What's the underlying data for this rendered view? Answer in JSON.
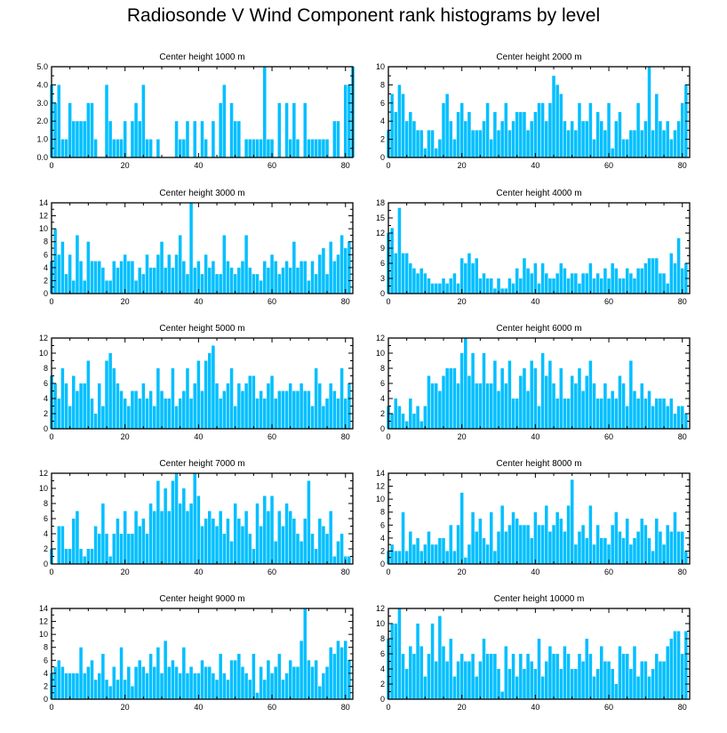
{
  "title": "Radiosonde V Wind Component rank histograms by level",
  "colors": {
    "bar": "#00bfff",
    "axis": "#000000",
    "background": "#ffffff"
  },
  "chart_data": [
    {
      "type": "bar",
      "title": "Center height 1000 m",
      "xlim": [
        0,
        82
      ],
      "ylim": [
        0,
        5
      ],
      "xticks": [
        0,
        20,
        40,
        60,
        80
      ],
      "yticks": [
        0,
        1,
        2,
        3,
        4,
        5
      ],
      "ytick_labels": [
        "0.0",
        "1.0",
        "2.0",
        "3.0",
        "4.0",
        "5.0"
      ],
      "values": [
        4,
        3,
        4,
        1,
        1,
        3,
        2,
        2,
        2,
        2,
        3,
        3,
        1,
        0,
        0,
        4,
        2,
        1,
        1,
        1,
        2,
        0,
        2,
        3,
        2,
        4,
        1,
        1,
        0,
        1,
        0,
        0,
        0,
        0,
        2,
        1,
        1,
        2,
        0,
        2,
        0,
        2,
        1,
        0,
        2,
        0,
        3,
        4,
        0,
        3,
        2,
        2,
        0,
        1,
        1,
        1,
        1,
        1,
        5,
        1,
        1,
        0,
        3,
        0,
        3,
        1,
        3,
        1,
        0,
        3,
        1,
        1,
        1,
        1,
        1,
        1,
        0,
        2,
        2,
        0,
        4,
        4,
        5
      ]
    },
    {
      "type": "bar",
      "title": "Center height 2000 m",
      "xlim": [
        0,
        82
      ],
      "ylim": [
        0,
        10
      ],
      "xticks": [
        0,
        20,
        40,
        60,
        80
      ],
      "yticks": [
        0,
        2,
        4,
        6,
        8,
        10
      ],
      "ytick_labels": [
        "0",
        "2",
        "4",
        "6",
        "8",
        "10"
      ],
      "values": [
        3,
        7,
        5,
        8,
        7,
        4,
        5,
        4,
        3,
        3,
        1,
        3,
        3,
        1,
        2,
        6,
        7,
        4,
        2,
        5,
        6,
        4,
        5,
        3,
        3,
        3,
        4,
        6,
        2,
        5,
        3,
        4,
        6,
        3,
        4,
        5,
        5,
        5,
        3,
        4,
        5,
        6,
        6,
        4,
        6,
        9,
        8,
        7,
        4,
        3,
        4,
        3,
        6,
        4,
        4,
        6,
        2,
        5,
        4,
        3,
        6,
        1,
        4,
        5,
        2,
        2,
        3,
        3,
        6,
        3,
        4,
        10,
        3,
        7,
        4,
        3,
        4,
        2,
        3,
        4,
        6,
        8
      ]
    },
    {
      "type": "bar",
      "title": "Center height 3000 m",
      "xlim": [
        0,
        82
      ],
      "ylim": [
        0,
        14
      ],
      "xticks": [
        0,
        20,
        40,
        60,
        80
      ],
      "yticks": [
        0,
        2,
        4,
        6,
        8,
        10,
        12,
        14
      ],
      "ytick_labels": [
        "0",
        "2",
        "4",
        "6",
        "8",
        "10",
        "12",
        "14"
      ],
      "values": [
        5,
        10,
        6,
        8,
        3,
        6,
        2,
        9,
        5,
        2,
        8,
        5,
        5,
        5,
        4,
        2,
        2,
        5,
        4,
        5,
        6,
        5,
        5,
        2,
        4,
        3,
        6,
        4,
        4,
        6,
        8,
        4,
        6,
        4,
        6,
        9,
        5,
        3,
        14,
        4,
        5,
        3,
        6,
        4,
        5,
        3,
        3,
        9,
        5,
        4,
        3,
        4,
        5,
        9,
        4,
        3,
        3,
        2,
        5,
        4,
        6,
        5,
        3,
        4,
        5,
        4,
        8,
        4,
        5,
        5,
        2,
        5,
        3,
        6,
        7,
        3,
        8,
        5,
        6,
        9,
        7,
        8
      ]
    },
    {
      "type": "bar",
      "title": "Center height 4000 m",
      "xlim": [
        0,
        82
      ],
      "ylim": [
        0,
        18
      ],
      "xticks": [
        0,
        20,
        40,
        60,
        80
      ],
      "yticks": [
        0,
        3,
        6,
        9,
        12,
        15,
        18
      ],
      "ytick_labels": [
        "0",
        "3",
        "6",
        "9",
        "12",
        "15",
        "18"
      ],
      "values": [
        12,
        13,
        8,
        17,
        8,
        8,
        6,
        5,
        4,
        5,
        4,
        3,
        2,
        2,
        2,
        3,
        2,
        3,
        4,
        2,
        7,
        6,
        8,
        6,
        7,
        3,
        4,
        3,
        3,
        1,
        3,
        1,
        1,
        3,
        2,
        5,
        3,
        7,
        5,
        4,
        6,
        2,
        6,
        4,
        3,
        3,
        4,
        6,
        5,
        3,
        4,
        4,
        2,
        4,
        4,
        6,
        3,
        4,
        3,
        5,
        3,
        6,
        5,
        3,
        3,
        5,
        4,
        3,
        5,
        5,
        6,
        7,
        7,
        7,
        4,
        4,
        2,
        8,
        6,
        11,
        5,
        6
      ]
    },
    {
      "type": "bar",
      "title": "Center height 5000 m",
      "xlim": [
        0,
        82
      ],
      "ylim": [
        0,
        12
      ],
      "xticks": [
        0,
        20,
        40,
        60,
        80
      ],
      "yticks": [
        0,
        2,
        4,
        6,
        8,
        10,
        12
      ],
      "ytick_labels": [
        "0",
        "2",
        "4",
        "6",
        "8",
        "10",
        "12"
      ],
      "values": [
        7,
        6,
        4,
        8,
        6,
        3,
        7,
        5,
        6,
        6,
        9,
        4,
        2,
        6,
        3,
        9,
        10,
        8,
        6,
        5,
        4,
        3,
        5,
        5,
        4,
        6,
        4,
        5,
        3,
        8,
        5,
        4,
        4,
        8,
        3,
        4,
        5,
        8,
        4,
        6,
        9,
        5,
        9,
        10,
        11,
        6,
        4,
        5,
        6,
        8,
        3,
        6,
        5,
        6,
        7,
        7,
        4,
        5,
        4,
        6,
        7,
        4,
        5,
        5,
        5,
        6,
        5,
        5,
        6,
        5,
        5,
        3,
        8,
        6,
        3,
        4,
        6,
        5,
        4,
        8,
        4,
        6
      ]
    },
    {
      "type": "bar",
      "title": "Center height 6000 m",
      "xlim": [
        0,
        82
      ],
      "ylim": [
        0,
        12
      ],
      "xticks": [
        0,
        20,
        40,
        60,
        80
      ],
      "yticks": [
        0,
        2,
        4,
        6,
        8,
        10,
        12
      ],
      "ytick_labels": [
        "0",
        "2",
        "4",
        "6",
        "8",
        "10",
        "12"
      ],
      "values": [
        3,
        2,
        4,
        3,
        2,
        1,
        4,
        2,
        3,
        1,
        3,
        7,
        6,
        6,
        5,
        7,
        8,
        8,
        8,
        6,
        10,
        12,
        7,
        10,
        6,
        6,
        10,
        6,
        6,
        9,
        5,
        8,
        6,
        9,
        4,
        4,
        7,
        8,
        5,
        9,
        8,
        3,
        10,
        7,
        9,
        6,
        4,
        8,
        4,
        4,
        7,
        6,
        8,
        5,
        7,
        9,
        6,
        4,
        4,
        6,
        4,
        5,
        4,
        7,
        6,
        3,
        9,
        5,
        4,
        6,
        4,
        5,
        3,
        4,
        4,
        4,
        3,
        4,
        2,
        3,
        3,
        2
      ]
    },
    {
      "type": "bar",
      "title": "Center height 7000 m",
      "xlim": [
        0,
        82
      ],
      "ylim": [
        0,
        12
      ],
      "xticks": [
        0,
        20,
        40,
        60,
        80
      ],
      "yticks": [
        0,
        2,
        4,
        6,
        8,
        10,
        12
      ],
      "ytick_labels": [
        "0",
        "2",
        "4",
        "6",
        "8",
        "10",
        "12"
      ],
      "values": [
        2,
        0,
        5,
        5,
        2,
        2,
        6,
        7,
        2,
        1,
        2,
        2,
        5,
        4,
        8,
        4,
        1,
        4,
        6,
        4,
        7,
        4,
        4,
        7,
        5,
        6,
        4,
        8,
        7,
        11,
        7,
        10,
        7,
        11,
        12,
        8,
        10,
        7,
        8,
        12,
        9,
        5,
        6,
        7,
        6,
        5,
        7,
        4,
        6,
        3,
        8,
        6,
        5,
        7,
        4,
        2,
        8,
        5,
        9,
        7,
        9,
        3,
        7,
        5,
        8,
        7,
        6,
        4,
        3,
        6,
        11,
        4,
        2,
        6,
        5,
        4,
        7,
        1,
        3,
        4,
        1,
        1
      ]
    },
    {
      "type": "bar",
      "title": "Center height 8000 m",
      "xlim": [
        0,
        82
      ],
      "ylim": [
        0,
        14
      ],
      "xticks": [
        0,
        20,
        40,
        60,
        80
      ],
      "yticks": [
        0,
        2,
        4,
        6,
        8,
        10,
        12,
        14
      ],
      "ytick_labels": [
        "0",
        "2",
        "4",
        "6",
        "8",
        "10",
        "12",
        "14"
      ],
      "values": [
        2,
        3,
        2,
        2,
        8,
        2,
        5,
        3,
        4,
        2,
        3,
        5,
        3,
        3,
        4,
        4,
        2,
        6,
        2,
        6,
        11,
        1,
        3,
        8,
        5,
        7,
        4,
        3,
        8,
        2,
        5,
        9,
        5,
        6,
        8,
        7,
        6,
        6,
        6,
        4,
        8,
        6,
        6,
        9,
        5,
        6,
        8,
        7,
        5,
        9,
        13,
        3,
        5,
        6,
        4,
        9,
        3,
        6,
        4,
        4,
        3,
        6,
        8,
        5,
        4,
        7,
        3,
        4,
        5,
        7,
        6,
        4,
        2,
        7,
        5,
        3,
        6,
        5,
        8,
        5,
        5,
        2
      ]
    },
    {
      "type": "bar",
      "title": "Center height 9000 m",
      "xlim": [
        0,
        82
      ],
      "ylim": [
        0,
        14
      ],
      "xticks": [
        0,
        20,
        40,
        60,
        80
      ],
      "yticks": [
        0,
        2,
        4,
        6,
        8,
        10,
        12,
        14
      ],
      "ytick_labels": [
        "0",
        "2",
        "4",
        "6",
        "8",
        "10",
        "12",
        "14"
      ],
      "values": [
        4,
        5,
        6,
        5,
        4,
        4,
        4,
        4,
        8,
        4,
        5,
        6,
        3,
        4,
        7,
        3,
        2,
        5,
        3,
        8,
        3,
        5,
        2,
        5,
        6,
        5,
        4,
        7,
        5,
        8,
        4,
        9,
        5,
        6,
        5,
        4,
        8,
        4,
        5,
        4,
        4,
        6,
        5,
        5,
        4,
        3,
        7,
        4,
        3,
        6,
        6,
        7,
        5,
        4,
        3,
        7,
        1,
        5,
        3,
        6,
        4,
        5,
        7,
        3,
        4,
        6,
        5,
        5,
        9,
        14,
        6,
        5,
        6,
        2,
        4,
        5,
        8,
        7,
        9,
        8,
        9,
        6
      ]
    },
    {
      "type": "bar",
      "title": "Center height 10000 m",
      "xlim": [
        0,
        82
      ],
      "ylim": [
        0,
        12
      ],
      "xticks": [
        0,
        20,
        40,
        60,
        80
      ],
      "yticks": [
        0,
        2,
        4,
        6,
        8,
        10,
        12
      ],
      "ytick_labels": [
        "0",
        "2",
        "4",
        "6",
        "8",
        "10",
        "12"
      ],
      "values": [
        8,
        10,
        10,
        12,
        6,
        4,
        7,
        6,
        10,
        7,
        3,
        6,
        10,
        5,
        11,
        7,
        5,
        8,
        3,
        5,
        6,
        5,
        5,
        6,
        3,
        5,
        8,
        6,
        6,
        6,
        4,
        1,
        7,
        4,
        6,
        3,
        6,
        4,
        6,
        5,
        4,
        8,
        3,
        5,
        7,
        6,
        6,
        4,
        7,
        6,
        4,
        4,
        6,
        5,
        8,
        6,
        3,
        4,
        7,
        5,
        5,
        4,
        2,
        7,
        6,
        6,
        4,
        7,
        3,
        5,
        5,
        3,
        4,
        6,
        5,
        5,
        7,
        8,
        9,
        9,
        6,
        9
      ]
    }
  ]
}
